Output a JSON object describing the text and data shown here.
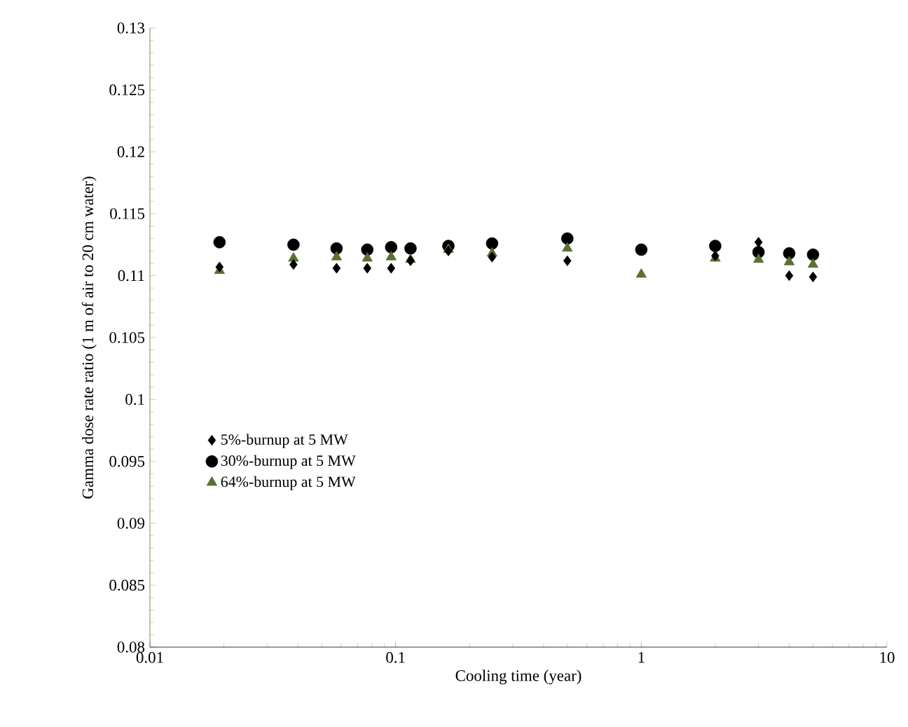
{
  "chart_data": {
    "type": "scatter",
    "xlabel": "Cooling time (year)",
    "ylabel": "Gamma dose rate ratio (1 m of air to 20 cm water)",
    "log": "x",
    "xlim": [
      0.01,
      10
    ],
    "xticks": [
      0.01,
      0.1,
      1,
      10
    ],
    "ylim": [
      0.08,
      0.13
    ],
    "yticks": [
      0.08,
      0.085,
      0.09,
      0.095,
      0.1,
      0.105,
      0.11,
      0.115,
      0.12,
      0.125,
      0.13
    ],
    "grid": false,
    "legend": "left",
    "x": [
      0.0192,
      0.0384,
      0.0575,
      0.0767,
      0.0959,
      0.115,
      0.164,
      0.247,
      0.5,
      1,
      2,
      3,
      4,
      5
    ],
    "series": [
      {
        "name": "5%-burnup at 5 MW",
        "color": "#000000",
        "marker": "diamond",
        "values": [
          0.1107,
          0.1109,
          0.1106,
          0.1106,
          0.1106,
          0.1112,
          0.112,
          0.1115,
          0.1112,
          null,
          0.1116,
          0.1127,
          0.11,
          0.1099
        ]
      },
      {
        "name": "30%-burnup at 5 MW",
        "color": "#000000",
        "marker": "circle",
        "values": [
          0.1127,
          0.1125,
          0.1122,
          0.1121,
          0.1123,
          0.1122,
          0.1124,
          0.1126,
          0.113,
          0.1121,
          0.1124,
          0.1119,
          0.1118,
          0.1117
        ]
      },
      {
        "name": "64%-burnup at 5 MW",
        "color": "#5a7032",
        "marker": "triangle",
        "values": [
          0.1104,
          0.1114,
          0.1115,
          0.1114,
          0.1115,
          0.1113,
          0.1121,
          0.1118,
          0.1122,
          0.1101,
          0.1114,
          0.1113,
          0.1111,
          0.1109
        ]
      }
    ]
  }
}
